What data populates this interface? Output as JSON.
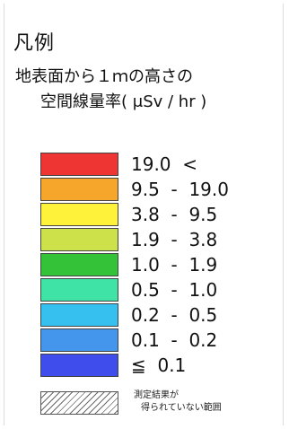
{
  "legend": {
    "title": "凡例",
    "subtitle_line1": "地表面から１ｍの高さの",
    "subtitle_line2": "空間線量率( μSv / hr )",
    "items": [
      {
        "color": "#ef3434",
        "label": "19.0  <"
      },
      {
        "color": "#f6a62b",
        "label": "9.5  -  19.0"
      },
      {
        "color": "#fff23a",
        "label": "3.8  -  9.5"
      },
      {
        "color": "#cde24a",
        "label": "1.9  -  3.8"
      },
      {
        "color": "#34c238",
        "label": "1.0  -  1.9"
      },
      {
        "color": "#3fe3a6",
        "label": "0.5  -  1.0"
      },
      {
        "color": "#35c0ef",
        "label": "0.2  -  0.5"
      },
      {
        "color": "#4495ec",
        "label": "0.1  -  0.2"
      },
      {
        "color": "#3f4dec",
        "label": "≦  0.1"
      }
    ],
    "no_data_line1": "測定結果が",
    "no_data_line2": "得られていない範囲"
  }
}
